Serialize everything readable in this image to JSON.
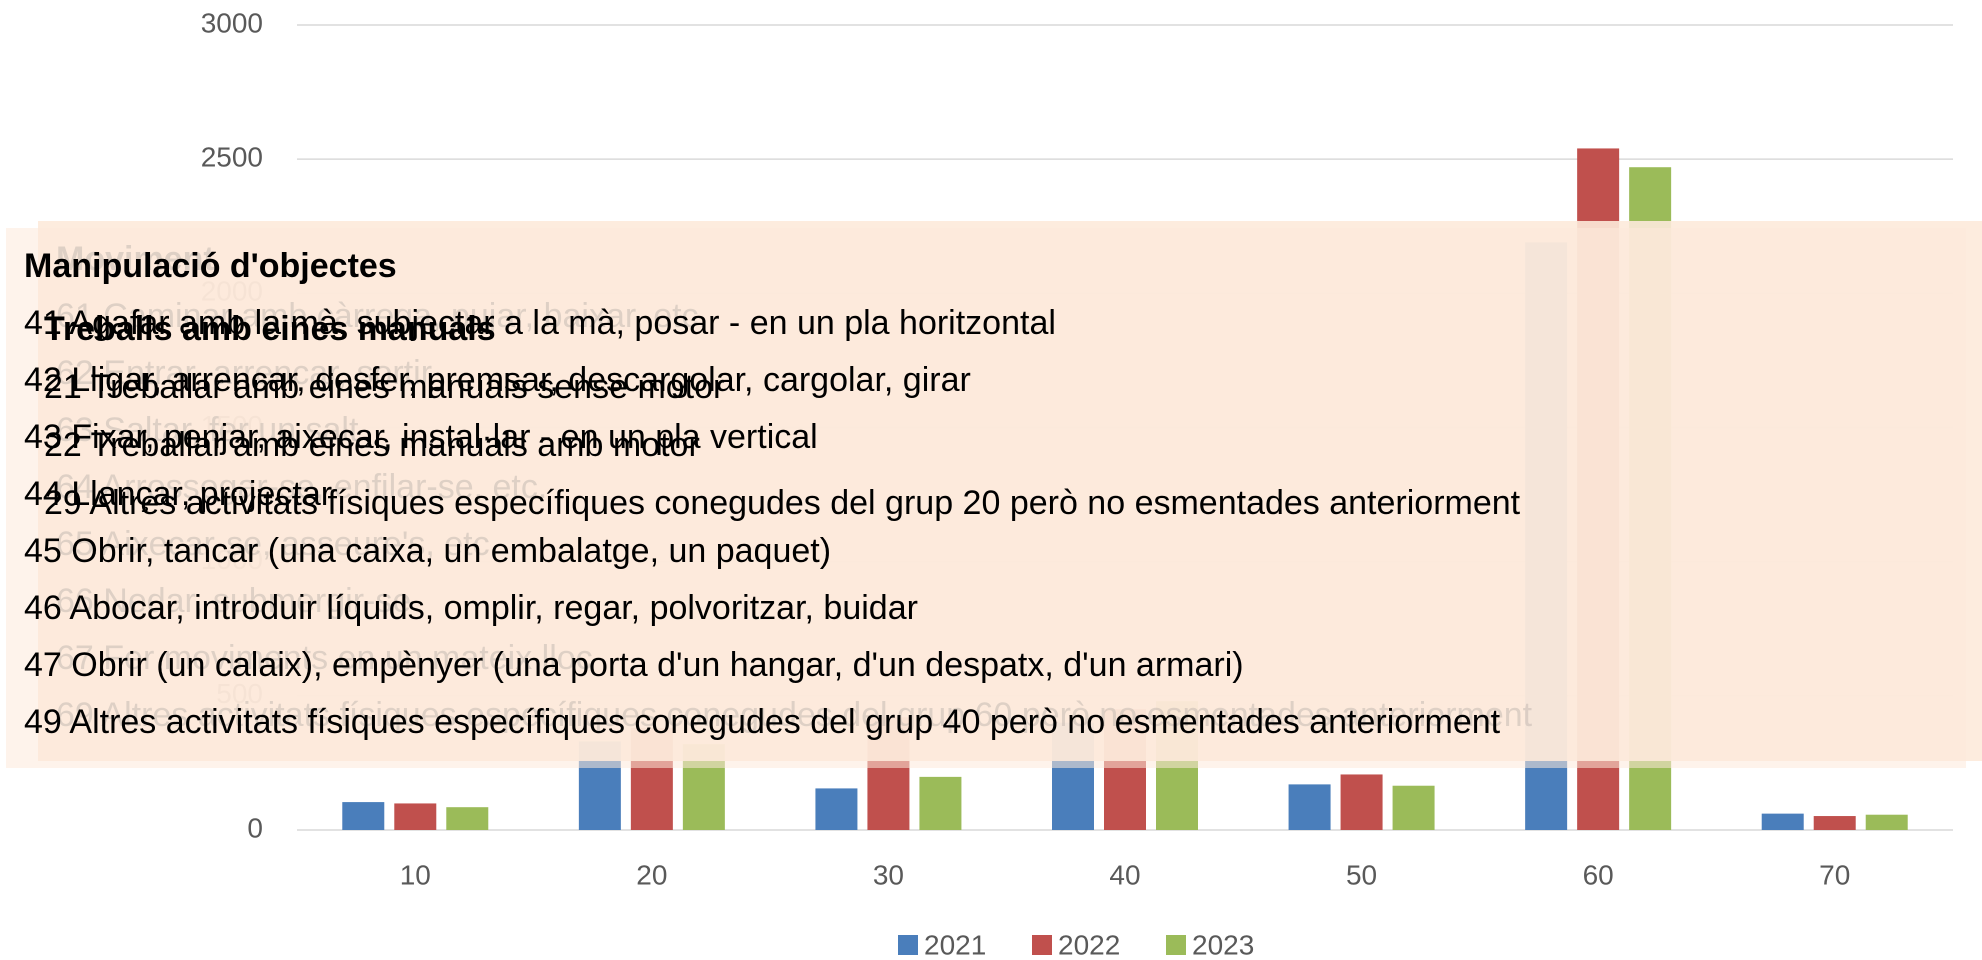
{
  "chart_data": {
    "type": "bar",
    "categories": [
      "10",
      "20",
      "30",
      "40",
      "50",
      "60",
      "70"
    ],
    "series": [
      {
        "name": "2021",
        "color": "#4a7ebb",
        "values": [
          104,
          330,
          155,
          400,
          170,
          2190,
          61
        ]
      },
      {
        "name": "2022",
        "color": "#c0504d",
        "values": [
          99,
          380,
          420,
          450,
          207,
          2540,
          52
        ]
      },
      {
        "name": "2023",
        "color": "#9bbb59",
        "values": [
          85,
          320,
          198,
          480,
          165,
          2470,
          57
        ]
      }
    ],
    "ylim": [
      0,
      3000
    ],
    "yticks": [
      0,
      500,
      1000,
      1500,
      2000,
      2500,
      3000
    ],
    "grid": true,
    "legend": "bottom"
  },
  "tooltips": [
    {
      "title": "Moviment",
      "items": [
        "61 Caminar amb càrrega, pujar, baixar, etc.",
        "62 Entrar, arrencar, sortir",
        "63 Saltar, fer un salt",
        "64 Arrossegar-se, enfilar-se, etc.",
        "65 Aixecar-se, asseure's, etc.",
        "66 Nedar, submergir-se",
        "67 Fer moviments en un mateix lloc",
        "69 Altres activitats físiques específiques conegudes del grup 60 però no esmentades anteriorment"
      ]
    },
    {
      "title": "Manipulació d'objectes",
      "items": [
        "41 Agafar amb la mà, subjectar a la mà, posar - en un pla horitzontal",
        "42 Lligar, arrencar, desfer, premsar, descargolar, cargolar, girar",
        "43 Fixar, penjar, aixecar, instal·lar - en un pla vertical",
        "44 Llançar, projectar",
        "45 Obrir, tancar (una caixa, un embalatge, un paquet)",
        "46 Abocar, introduir líquids, omplir, regar, polvoritzar, buidar",
        "47 Obrir (un calaix), empènyer (una porta d'un hangar, d'un despatx, d'un armari)",
        "49 Altres activitats físiques específiques conegudes del grup 40 però no esmentades anteriorment"
      ]
    },
    {
      "title": "Treballs amb eines manuals",
      "items": [
        "21 Treballar amb eines manuals sense motor",
        "22 Treballar amb eines manuals amb motor",
        "29 Altres activitats físiques específiques conegudes del grup 20 però no esmentades anteriorment"
      ]
    }
  ]
}
